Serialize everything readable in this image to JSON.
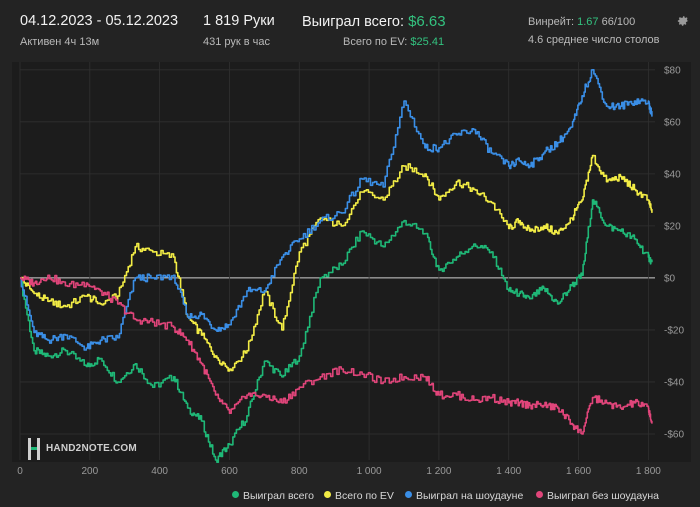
{
  "header": {
    "date_range": "04.12.2023 - 05.12.2023",
    "active": "Активен 4ч 13м",
    "hands": "1 819 Руки",
    "hands_per_hour": "431 рук в час",
    "won_total_label": "Выиграл всего:",
    "won_total_value": "$6.63",
    "ev_total_label": "Всего по EV:",
    "ev_total_value": "$25.41",
    "winrate_label": "Винрейт:",
    "winrate_value": "1.67",
    "winrate_rest": "66/100",
    "tables": "4.6 среднее число столов"
  },
  "logo": {
    "brand": "HAND2NOTE.COM"
  },
  "icons": {
    "settings": "gear-icon"
  },
  "colors": {
    "won_total": "#1fb877",
    "ev": "#f2ec45",
    "showdown": "#3a8ee6",
    "no_showdown": "#e0457a",
    "zero_line": "#cfcfcf",
    "grid": "#303030"
  },
  "chart_data": {
    "type": "line",
    "xlim": [
      0,
      1819
    ],
    "ylim": [
      -70,
      83
    ],
    "x_ticks": [
      0,
      200,
      400,
      600,
      800,
      1000,
      1200,
      1400,
      1600,
      1800
    ],
    "x_tick_labels": [
      "0",
      "200",
      "400",
      "600",
      "800",
      "1 000",
      "1 200",
      "1 400",
      "1 600",
      "1 800"
    ],
    "y_ticks": [
      80,
      60,
      40,
      20,
      0,
      -20,
      -40,
      -60
    ],
    "y_tick_labels": [
      "$80",
      "$60",
      "$40",
      "$20",
      "$0",
      "-$20",
      "-$40",
      "-$60"
    ],
    "grid": true,
    "legend": "bottom-right",
    "series": [
      {
        "name": "Выиграл всего",
        "key": "won_total",
        "x": [
          0,
          40,
          80,
          130,
          190,
          230,
          280,
          330,
          380,
          440,
          480,
          520,
          560,
          600,
          650,
          700,
          750,
          800,
          860,
          920,
          980,
          1040,
          1100,
          1160,
          1200,
          1250,
          1300,
          1350,
          1400,
          1430,
          1460,
          1500,
          1540,
          1580,
          1610,
          1640,
          1680,
          1720,
          1760,
          1800,
          1810
        ],
        "y": [
          0,
          -28,
          -30,
          -28,
          -34,
          -31,
          -40,
          -33,
          -42,
          -38,
          -50,
          -55,
          -70,
          -64,
          -53,
          -32,
          -38,
          -30,
          0,
          5,
          18,
          12,
          22,
          17,
          3,
          8,
          13,
          10,
          -5,
          -6,
          -8,
          -4,
          -10,
          -3,
          1,
          30,
          20,
          18,
          15,
          8,
          6
        ]
      },
      {
        "name": "Всего по EV",
        "key": "ev",
        "x": [
          0,
          40,
          80,
          130,
          190,
          230,
          280,
          330,
          380,
          440,
          480,
          520,
          560,
          600,
          650,
          700,
          750,
          800,
          860,
          920,
          980,
          1040,
          1100,
          1160,
          1200,
          1250,
          1300,
          1350,
          1400,
          1430,
          1460,
          1500,
          1540,
          1580,
          1610,
          1640,
          1680,
          1720,
          1760,
          1800,
          1810
        ],
        "y": [
          0,
          -6,
          -9,
          -11,
          -7,
          -10,
          -7,
          12,
          10,
          8,
          -15,
          -22,
          -30,
          -35,
          -28,
          -5,
          -20,
          10,
          23,
          20,
          33,
          30,
          43,
          40,
          30,
          37,
          34,
          29,
          19,
          22,
          18,
          20,
          17,
          23,
          30,
          47,
          37,
          39,
          34,
          30,
          25
        ]
      },
      {
        "name": "Выиграл на шоудауне",
        "key": "showdown",
        "x": [
          0,
          40,
          80,
          130,
          190,
          230,
          280,
          330,
          380,
          440,
          480,
          520,
          560,
          600,
          650,
          700,
          750,
          800,
          860,
          920,
          980,
          1040,
          1100,
          1160,
          1200,
          1250,
          1300,
          1350,
          1400,
          1430,
          1460,
          1500,
          1540,
          1580,
          1610,
          1640,
          1680,
          1720,
          1760,
          1800,
          1810
        ],
        "y": [
          0,
          -21,
          -24,
          -22,
          -27,
          -24,
          -23,
          0,
          0,
          1,
          -15,
          -14,
          -20,
          -18,
          -5,
          -5,
          8,
          15,
          22,
          25,
          38,
          35,
          68,
          50,
          50,
          55,
          57,
          48,
          43,
          45,
          43,
          48,
          52,
          58,
          70,
          80,
          66,
          66,
          68,
          68,
          62
        ]
      },
      {
        "name": "Выиграл без шоудауна",
        "key": "no_showdown",
        "x": [
          0,
          40,
          80,
          130,
          190,
          230,
          280,
          330,
          380,
          440,
          480,
          520,
          560,
          600,
          650,
          700,
          750,
          800,
          860,
          920,
          980,
          1040,
          1100,
          1160,
          1200,
          1250,
          1300,
          1350,
          1400,
          1430,
          1460,
          1500,
          1540,
          1580,
          1610,
          1640,
          1680,
          1720,
          1760,
          1800,
          1810
        ],
        "y": [
          0,
          -2,
          1,
          -3,
          -2,
          -5,
          -10,
          -16,
          -17,
          -19,
          -24,
          -33,
          -45,
          -52,
          -45,
          -45,
          -48,
          -42,
          -38,
          -35,
          -37,
          -40,
          -38,
          -38,
          -45,
          -45,
          -47,
          -46,
          -48,
          -48,
          -49,
          -49,
          -50,
          -56,
          -60,
          -46,
          -48,
          -50,
          -48,
          -50,
          -56
        ]
      }
    ]
  },
  "legend_items": [
    {
      "label": "Выиграл всего"
    },
    {
      "label": "Всего по EV"
    },
    {
      "label": "Выиграл на шоудауне"
    },
    {
      "label": "Выиграл без шоудауна"
    }
  ]
}
